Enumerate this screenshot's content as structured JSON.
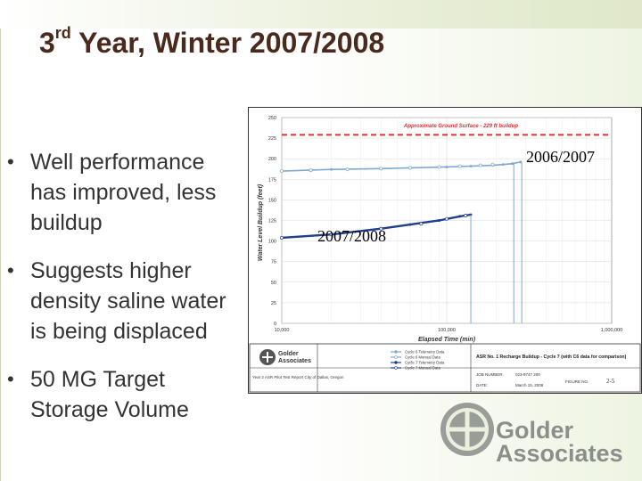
{
  "slide": {
    "title_pre": "3",
    "title_sup": "rd",
    "title_post": " Year, Winter 2007/2008",
    "bullets": [
      "Well performance has improved, less buildup",
      "Suggests higher density saline water is being displaced",
      "50 MG Target Storage Volume"
    ],
    "overlay_labels": {
      "top": "2006/2007",
      "bottom": "2007/2008"
    },
    "logo_text_line1": "Golder",
    "logo_text_line2": "Associates"
  },
  "chart_data": {
    "type": "line",
    "xlabel": "Elapsed Time (min)",
    "ylabel": "Water Level Buildup (feet)",
    "x_scale": "log",
    "xlim": [
      10000,
      1000000
    ],
    "ylim": [
      0,
      250
    ],
    "x_ticks": [
      "10,000",
      "100,000",
      "1,000,000"
    ],
    "y_ticks": [
      "0",
      "25",
      "50",
      "75",
      "100",
      "125",
      "150",
      "175",
      "200",
      "225",
      "250"
    ],
    "grid": true,
    "annotation": "Approximate Ground Surface - 229 ft buildup",
    "reference_line_y": 229,
    "legend": [
      "Cycle 6 Telemetry Data",
      "Cycle 6 Manual Data",
      "Cycle 7 Telemetry Data",
      "Cycle 7 Manual Data"
    ],
    "colors": {
      "cycle6": "#7fa7d4",
      "cycle7": "#1f3f8a",
      "reference": "#e03030"
    },
    "series": [
      {
        "name": "Cycle 6 Telemetry Data",
        "x": [
          10000,
          20000,
          40000,
          60000,
          100000,
          140000,
          190000,
          220000,
          250000,
          280000
        ],
        "y": [
          185,
          187,
          188,
          189,
          190,
          191,
          192,
          193,
          194,
          196
        ]
      },
      {
        "name": "Cycle 6 Manual Data",
        "x": [
          10000,
          15000,
          25000,
          40000,
          60000,
          90000,
          120000,
          160000,
          190000
        ],
        "y": [
          185,
          186,
          187,
          188,
          189,
          190,
          191,
          192,
          193
        ]
      },
      {
        "name": "Cycle 7 Telemetry Data",
        "x": [
          10000,
          20000,
          40000,
          60000,
          90000,
          120000,
          140000
        ],
        "y": [
          104,
          108,
          115,
          120,
          125,
          130,
          132
        ]
      },
      {
        "name": "Cycle 7 Manual Data",
        "x": [
          10000,
          20000,
          40000,
          70000,
          100000,
          130000
        ],
        "y": [
          104,
          108,
          115,
          121,
          127,
          131
        ]
      }
    ],
    "title_block": {
      "title": "ASR No. 1 Recharge Buildup - Cycle 7 (with C6 data for comparison)",
      "report": "Year 2 ASR Pilot Test Report City of Dallas, Oregon",
      "job_number_label": "JOB NUMBER:",
      "job_number": "023-9747 200",
      "date_label": "DATE:",
      "date": "March 15, 2008",
      "figure_label": "FIGURE NO.",
      "figure_no": "2-5",
      "logo_line1": "Golder",
      "logo_line2": "Associates"
    }
  }
}
